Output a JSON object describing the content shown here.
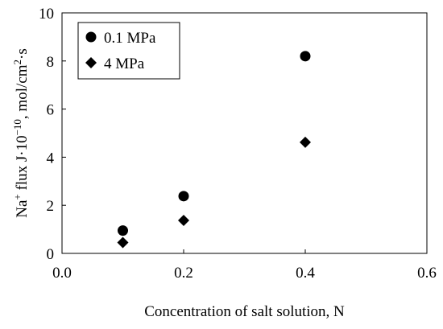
{
  "chart_data": {
    "type": "scatter",
    "xlabel": "Concentration of salt solution, N",
    "ylabel": {
      "base": "Na",
      "sup1": "+",
      "mid": " flux J·10",
      "sup2": "−10",
      "mid2": ", mol/cm",
      "sup3": "2",
      "end": "·s"
    },
    "xlim": [
      0.0,
      0.6
    ],
    "ylim": [
      0,
      10
    ],
    "x_ticks": [
      "0.0",
      "0.2",
      "0.4",
      "0.6"
    ],
    "y_ticks": [
      "0",
      "2",
      "4",
      "6",
      "8",
      "10"
    ],
    "grid": false,
    "legend_position": "top-left",
    "series": [
      {
        "name": "0.1 MPa",
        "marker": "circle",
        "color": "#000000",
        "points": [
          {
            "x": 0.1,
            "y": 0.95
          },
          {
            "x": 0.2,
            "y": 2.38
          },
          {
            "x": 0.4,
            "y": 8.2
          }
        ]
      },
      {
        "name": "4 MPa",
        "marker": "diamond",
        "color": "#000000",
        "points": [
          {
            "x": 0.1,
            "y": 0.45
          },
          {
            "x": 0.2,
            "y": 1.37
          },
          {
            "x": 0.4,
            "y": 4.62
          }
        ]
      }
    ]
  }
}
